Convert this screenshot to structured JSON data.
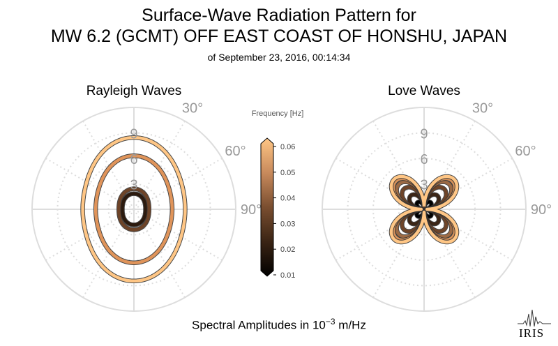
{
  "title": {
    "line1": "Surface-Wave Radiation Pattern for",
    "line2": "MW 6.2 (GCMT) OFF EAST COAST OF HONSHU, JAPAN",
    "line3": "of September 23, 2016, 00:14:34"
  },
  "footer": {
    "prefix": "Spectral Amplitudes in ",
    "base": "10",
    "exponent": "−3",
    "unit": " m/Hz"
  },
  "logo": {
    "text": "IRIS"
  },
  "colorbar": {
    "label": "Frequency [Hz]",
    "ticks": [
      "0.06",
      "0.05",
      "0.04",
      "0.03",
      "0.02",
      "0.01"
    ],
    "colors": [
      "#000000",
      "#3a2414",
      "#7a4e30",
      "#c88a5c",
      "#ffc685"
    ]
  },
  "chart_data": [
    {
      "type": "polar",
      "title": "Rayleigh Waves",
      "radial_ticks": [
        "3",
        "6",
        "9"
      ],
      "rmax": 12,
      "angle_ticks": [
        "30°",
        "60°",
        "90°"
      ],
      "angular_grid_step_deg": 30,
      "grid": true,
      "series": [
        {
          "frequency": 0.01,
          "color": "#2c1a0e",
          "r0": 1.6,
          "a2": 0.15,
          "a4": 0.0,
          "b4": 0.0
        },
        {
          "frequency": 0.02,
          "color": "#6e4428",
          "r0": 2.1,
          "a2": 0.15,
          "a4": 0.0,
          "b4": 0.0
        },
        {
          "frequency": 0.04,
          "color": "#e0945a",
          "r0": 5.3,
          "a2": 0.17,
          "a4": 0.02,
          "b4": 0.0
        },
        {
          "frequency": 0.06,
          "color": "#ffc685",
          "r0": 7.1,
          "a2": 0.17,
          "a4": 0.02,
          "b4": 0.0
        }
      ]
    },
    {
      "type": "polar",
      "title": "Love Waves",
      "radial_ticks": [
        "3",
        "6",
        "9"
      ],
      "rmax": 12,
      "angle_ticks": [
        "30°",
        "60°",
        "90°"
      ],
      "angular_grid_step_deg": 30,
      "grid": true,
      "series": [
        {
          "frequency": 0.01,
          "color": "#000000",
          "amp": 1.1,
          "lobe_angle_deg": 45
        },
        {
          "frequency": 0.02,
          "color": "#3c2616",
          "amp": 2.2,
          "lobe_angle_deg": 45
        },
        {
          "frequency": 0.03,
          "color": "#6e4428",
          "amp": 3.3,
          "lobe_angle_deg": 45
        },
        {
          "frequency": 0.04,
          "color": "#9c6a44",
          "amp": 4.1,
          "lobe_angle_deg": 45
        },
        {
          "frequency": 0.05,
          "color": "#d8925a",
          "amp": 4.6,
          "lobe_angle_deg": 45
        },
        {
          "frequency": 0.06,
          "color": "#ffc685",
          "amp": 4.9,
          "lobe_angle_deg": 45
        }
      ]
    }
  ]
}
